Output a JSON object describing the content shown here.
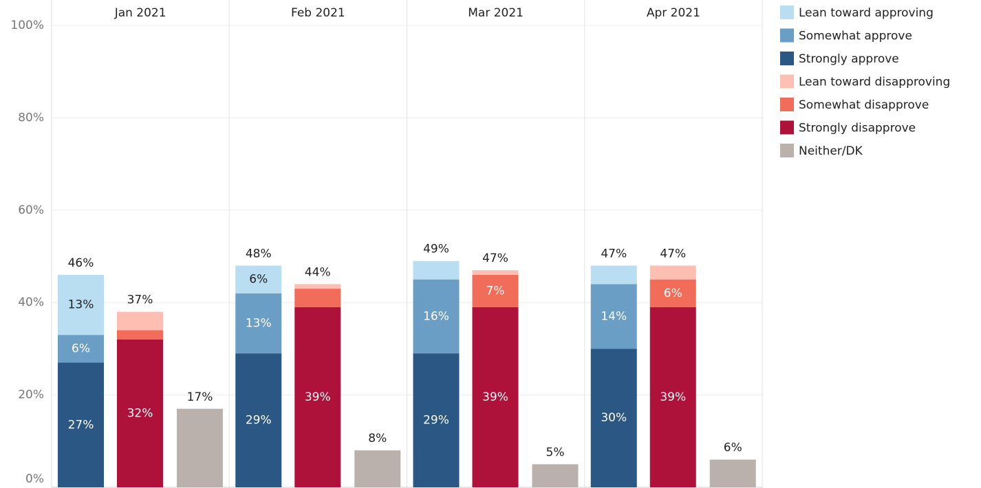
{
  "chart_data": {
    "type": "bar",
    "stacked": true,
    "categories": [
      "Jan 2021",
      "Feb 2021",
      "Mar 2021",
      "Apr 2021"
    ],
    "series": [
      {
        "name": "Lean toward approving",
        "color": "#b9ddf1",
        "values": [
          13,
          6,
          4,
          4
        ],
        "value_labels": [
          "13%",
          "6%",
          null,
          null
        ]
      },
      {
        "name": "Somewhat approve",
        "color": "#6a9ec5",
        "values": [
          6,
          13,
          16,
          14
        ],
        "value_labels": [
          "6%",
          "13%",
          "16%",
          "14%"
        ]
      },
      {
        "name": "Strongly approve",
        "color": "#2a5783",
        "values": [
          27,
          29,
          29,
          30
        ],
        "value_labels": [
          "27%",
          "29%",
          "29%",
          "30%"
        ]
      },
      {
        "name": "Lean toward disapproving",
        "color": "#ffbeb2",
        "values": [
          4,
          1,
          1,
          3
        ],
        "value_labels": [
          null,
          null,
          null,
          null
        ]
      },
      {
        "name": "Somewhat disapprove",
        "color": "#f26c5a",
        "values": [
          2,
          4,
          7,
          6
        ],
        "value_labels": [
          null,
          null,
          "7%",
          "6%"
        ]
      },
      {
        "name": "Strongly disapprove",
        "color": "#ae123a",
        "values": [
          32,
          39,
          39,
          39
        ],
        "value_labels": [
          "32%",
          "39%",
          "39%",
          "39%"
        ]
      },
      {
        "name": "Neither/DK",
        "color": "#bab0ac",
        "values": [
          17,
          8,
          5,
          6
        ],
        "value_labels": [
          "17%",
          "8%",
          "5%",
          "6%"
        ]
      }
    ],
    "totals": {
      "values": [
        [
          46,
          37
        ],
        [
          48,
          44
        ],
        [
          49,
          47
        ],
        [
          47,
          47
        ]
      ],
      "labels": [
        [
          "46%",
          "37%"
        ],
        [
          "48%",
          "44%"
        ],
        [
          "49%",
          "47%"
        ],
        [
          "47%",
          "47%"
        ]
      ]
    },
    "ylim": [
      0,
      100
    ],
    "yticks": [
      {
        "value": 0,
        "label": "0%"
      },
      {
        "value": 20,
        "label": "20%"
      },
      {
        "value": 40,
        "label": "40%"
      },
      {
        "value": 60,
        "label": "60%"
      },
      {
        "value": 80,
        "label": "80%"
      },
      {
        "value": 100,
        "label": "100%"
      }
    ],
    "grid": true,
    "legend": "right"
  }
}
